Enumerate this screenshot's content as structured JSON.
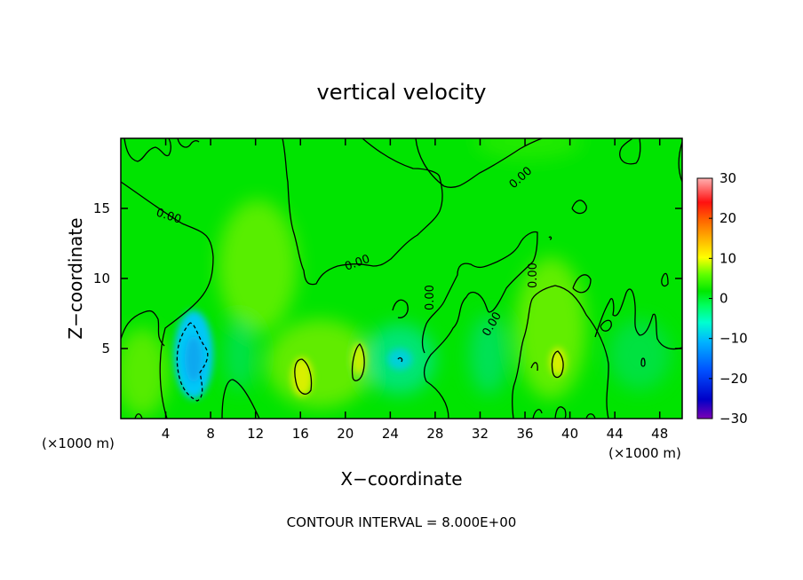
{
  "chart_data": {
    "type": "heatmap",
    "title": "vertical velocity",
    "xlabel": "X−coordinate",
    "ylabel": "Z−coordinate",
    "x_unit_left": "(×1000 m)",
    "x_unit_right": "(×1000 m)",
    "xlim": [
      0,
      50
    ],
    "ylim": [
      0,
      20
    ],
    "x_ticks": [
      4,
      8,
      12,
      16,
      20,
      24,
      28,
      32,
      36,
      40,
      44,
      48
    ],
    "y_ticks": [
      5,
      10,
      15
    ],
    "colorbar": {
      "ticks": [
        30,
        20,
        10,
        0,
        -10,
        -20,
        -30
      ],
      "tick_labels": [
        "30",
        "20",
        "10",
        "0",
        "−10",
        "−20",
        "−30"
      ],
      "range": [
        -30,
        30
      ],
      "colors": [
        "#7a00b4",
        "#0000c8",
        "#0050ff",
        "#00b4ff",
        "#00ffd0",
        "#00ff60",
        "#00e800",
        "#60ff00",
        "#c0ff00",
        "#ffff00",
        "#ffb000",
        "#ff6000",
        "#ff1010",
        "#ff6060",
        "#ffb0b0"
      ]
    },
    "contour_labels": [
      "0.00",
      "0.00",
      "0.00",
      "0.00",
      "0.00",
      "0.00"
    ],
    "footer": "CONTOUR INTERVAL = 8.000E+00",
    "features": [
      {
        "x": 6,
        "y": 4.5,
        "value": -12
      },
      {
        "x": 16,
        "y": 3,
        "value": 8
      },
      {
        "x": 21,
        "y": 4,
        "value": 7
      },
      {
        "x": 38.8,
        "y": 4,
        "value": 9
      },
      {
        "x": 12,
        "y": 11,
        "value": 5
      },
      {
        "x": 25,
        "y": 4,
        "value": -6
      },
      {
        "x": 40,
        "y": 13,
        "value": 3
      },
      {
        "x": 45,
        "y": 4,
        "value": -3
      }
    ]
  }
}
